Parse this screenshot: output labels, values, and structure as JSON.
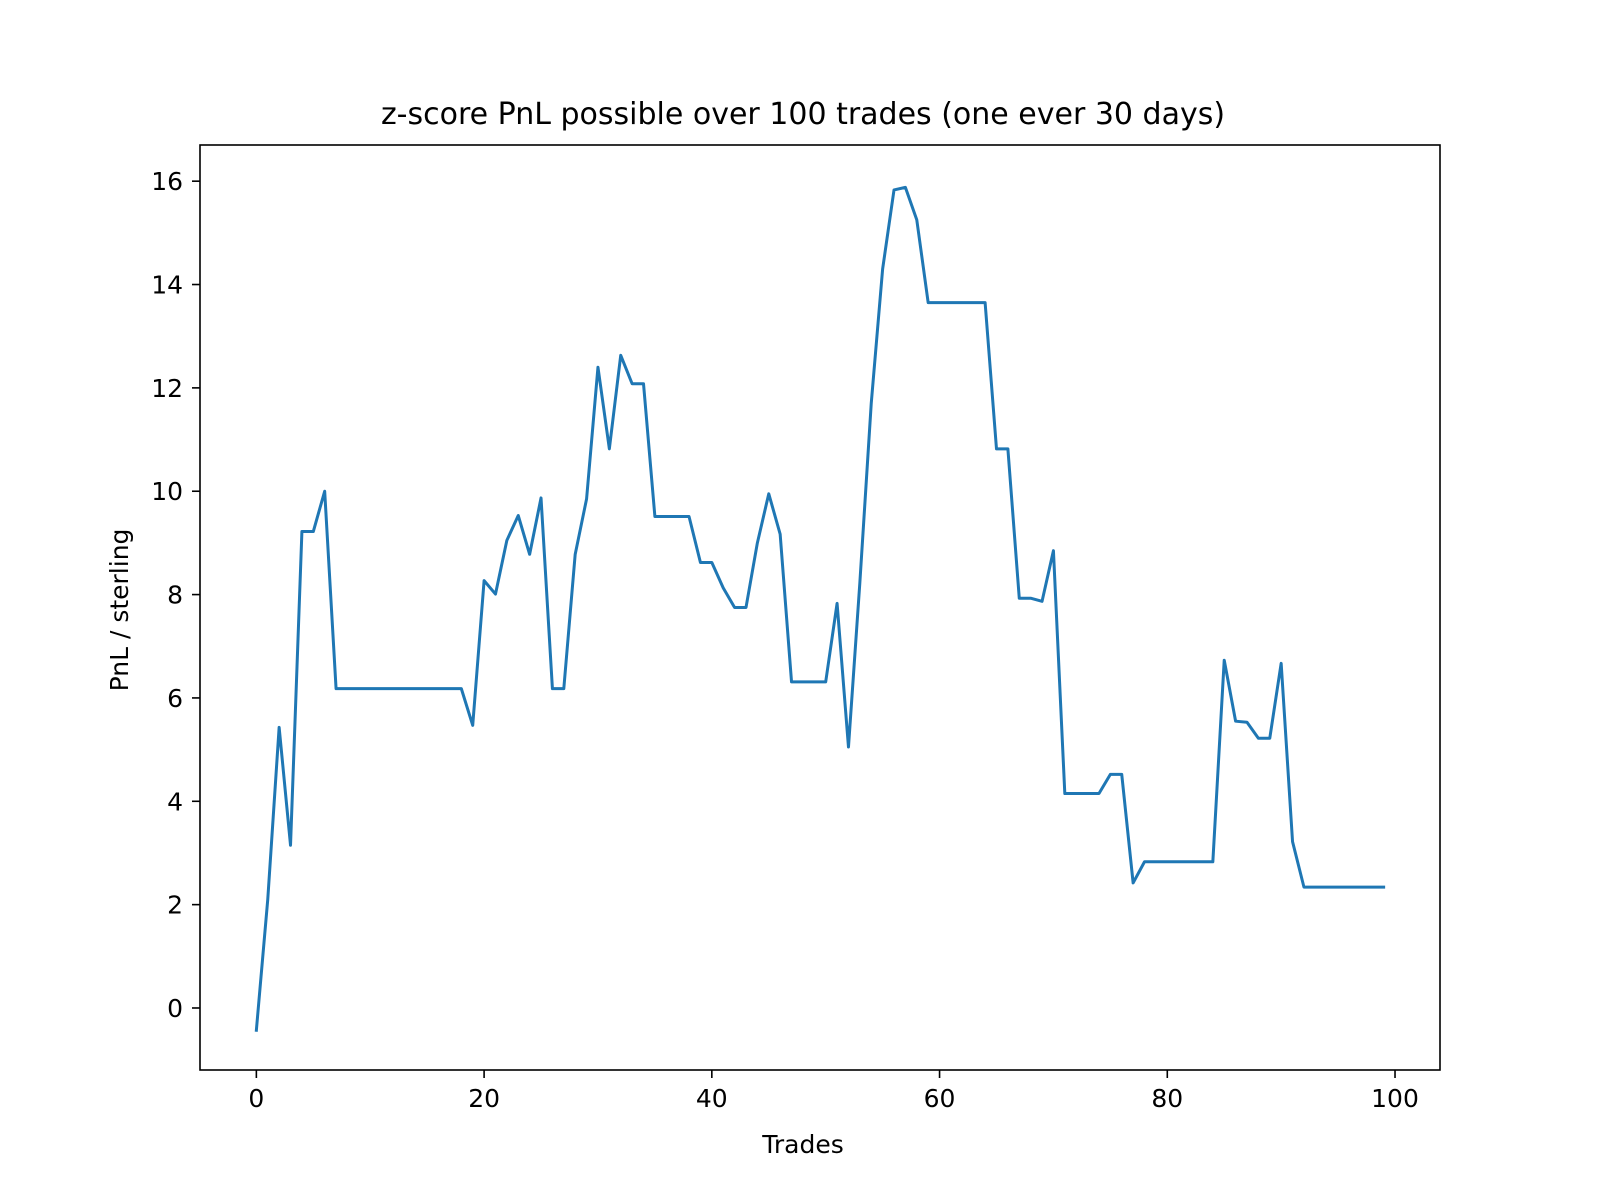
{
  "chart_data": {
    "type": "line",
    "title": "z-score PnL possible over 100 trades (one ever 30 days)",
    "xlabel": "Trades",
    "ylabel": "PnL / sterling",
    "xlim": [
      -4.95,
      103.95
    ],
    "ylim": [
      -1.2,
      16.7
    ],
    "xticks": [
      0,
      20,
      40,
      60,
      80,
      100
    ],
    "yticks": [
      0,
      2,
      4,
      6,
      8,
      10,
      12,
      14,
      16
    ],
    "grid": false,
    "legend": "none",
    "series": [
      {
        "color": "#1f77b4",
        "x": [
          0,
          1,
          2,
          3,
          4,
          5,
          6,
          7,
          8,
          9,
          10,
          11,
          12,
          13,
          14,
          15,
          16,
          17,
          18,
          19,
          20,
          21,
          22,
          23,
          24,
          25,
          26,
          27,
          28,
          29,
          30,
          31,
          32,
          33,
          34,
          35,
          36,
          37,
          38,
          39,
          40,
          41,
          42,
          43,
          44,
          45,
          46,
          47,
          48,
          49,
          50,
          51,
          52,
          53,
          54,
          55,
          56,
          57,
          58,
          59,
          60,
          61,
          62,
          63,
          64,
          65,
          66,
          67,
          68,
          69,
          70,
          71,
          72,
          73,
          74,
          75,
          76,
          77,
          78,
          79,
          80,
          81,
          82,
          83,
          84,
          85,
          86,
          87,
          88,
          89,
          90,
          91,
          92,
          93,
          94,
          95,
          96,
          97,
          98,
          99
        ],
        "values": [
          -0.43,
          2.1,
          5.43,
          3.15,
          9.22,
          9.22,
          10.0,
          6.18,
          6.18,
          6.18,
          6.18,
          6.18,
          6.18,
          6.18,
          6.18,
          6.18,
          6.18,
          6.18,
          6.18,
          5.47,
          8.27,
          8.01,
          9.05,
          9.53,
          8.78,
          9.87,
          6.18,
          6.18,
          8.78,
          9.85,
          12.4,
          10.82,
          12.63,
          12.08,
          12.08,
          9.51,
          9.51,
          9.51,
          9.51,
          8.62,
          8.62,
          8.13,
          7.75,
          7.75,
          9.0,
          9.95,
          9.17,
          6.31,
          6.31,
          6.31,
          6.31,
          7.83,
          5.05,
          8.23,
          11.7,
          14.3,
          15.83,
          15.88,
          15.25,
          13.65,
          13.65,
          13.65,
          13.65,
          13.65,
          13.65,
          10.82,
          10.82,
          7.93,
          7.93,
          7.87,
          8.85,
          4.15,
          4.15,
          4.15,
          4.15,
          4.52,
          4.52,
          2.42,
          2.83,
          2.83,
          2.83,
          2.83,
          2.83,
          2.83,
          2.83,
          6.73,
          5.55,
          5.53,
          5.22,
          5.22,
          6.67,
          3.22,
          2.34,
          2.34,
          2.34,
          2.34,
          2.34,
          2.34,
          2.34,
          2.34
        ]
      }
    ]
  }
}
